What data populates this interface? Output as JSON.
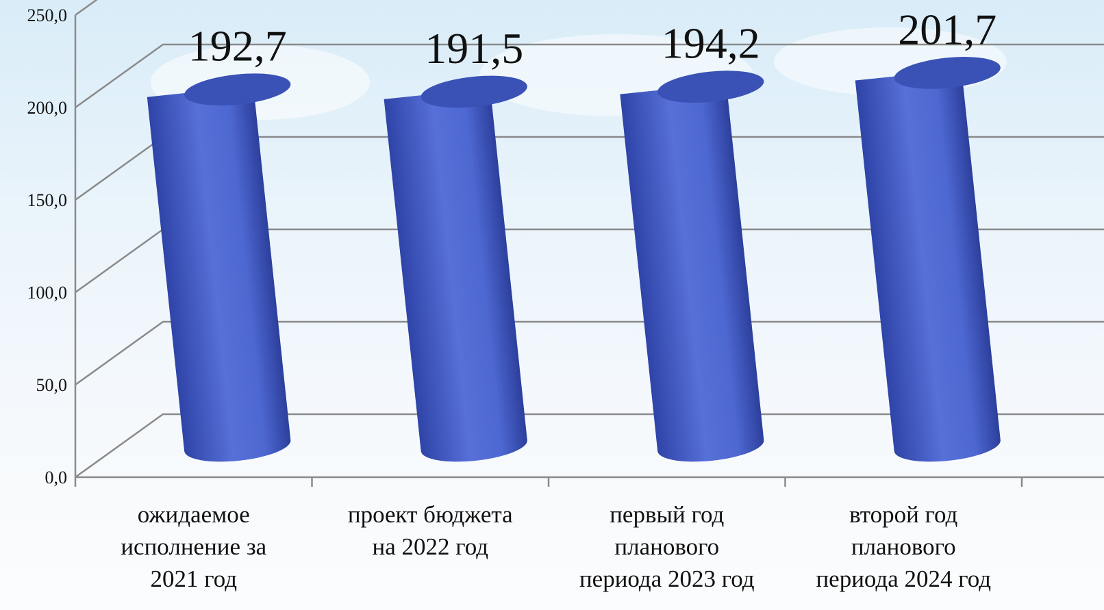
{
  "chart_data": {
    "type": "bar",
    "categories": [
      [
        "ожидаемое",
        "исполнение за",
        "2021 год"
      ],
      [
        "проект бюджета",
        "на 2022 год"
      ],
      [
        "первый год",
        "планового",
        "периода 2023 год"
      ],
      [
        "второй год",
        "планового",
        "периода 2024 год"
      ]
    ],
    "values": [
      192.7,
      191.5,
      194.2,
      201.7
    ],
    "value_labels": [
      "192,7",
      "191,5",
      "194,2",
      "201,7"
    ],
    "color": "#4d66d0",
    "ylim": [
      0,
      250
    ],
    "yticks": [
      {
        "value": 0,
        "label": "0,0"
      },
      {
        "value": 50,
        "label": "50,0"
      },
      {
        "value": 100,
        "label": "100,0"
      },
      {
        "value": 150,
        "label": "150,0"
      },
      {
        "value": 200,
        "label": "200,0"
      },
      {
        "value": 250,
        "label": "250,0"
      }
    ],
    "grid": true
  }
}
